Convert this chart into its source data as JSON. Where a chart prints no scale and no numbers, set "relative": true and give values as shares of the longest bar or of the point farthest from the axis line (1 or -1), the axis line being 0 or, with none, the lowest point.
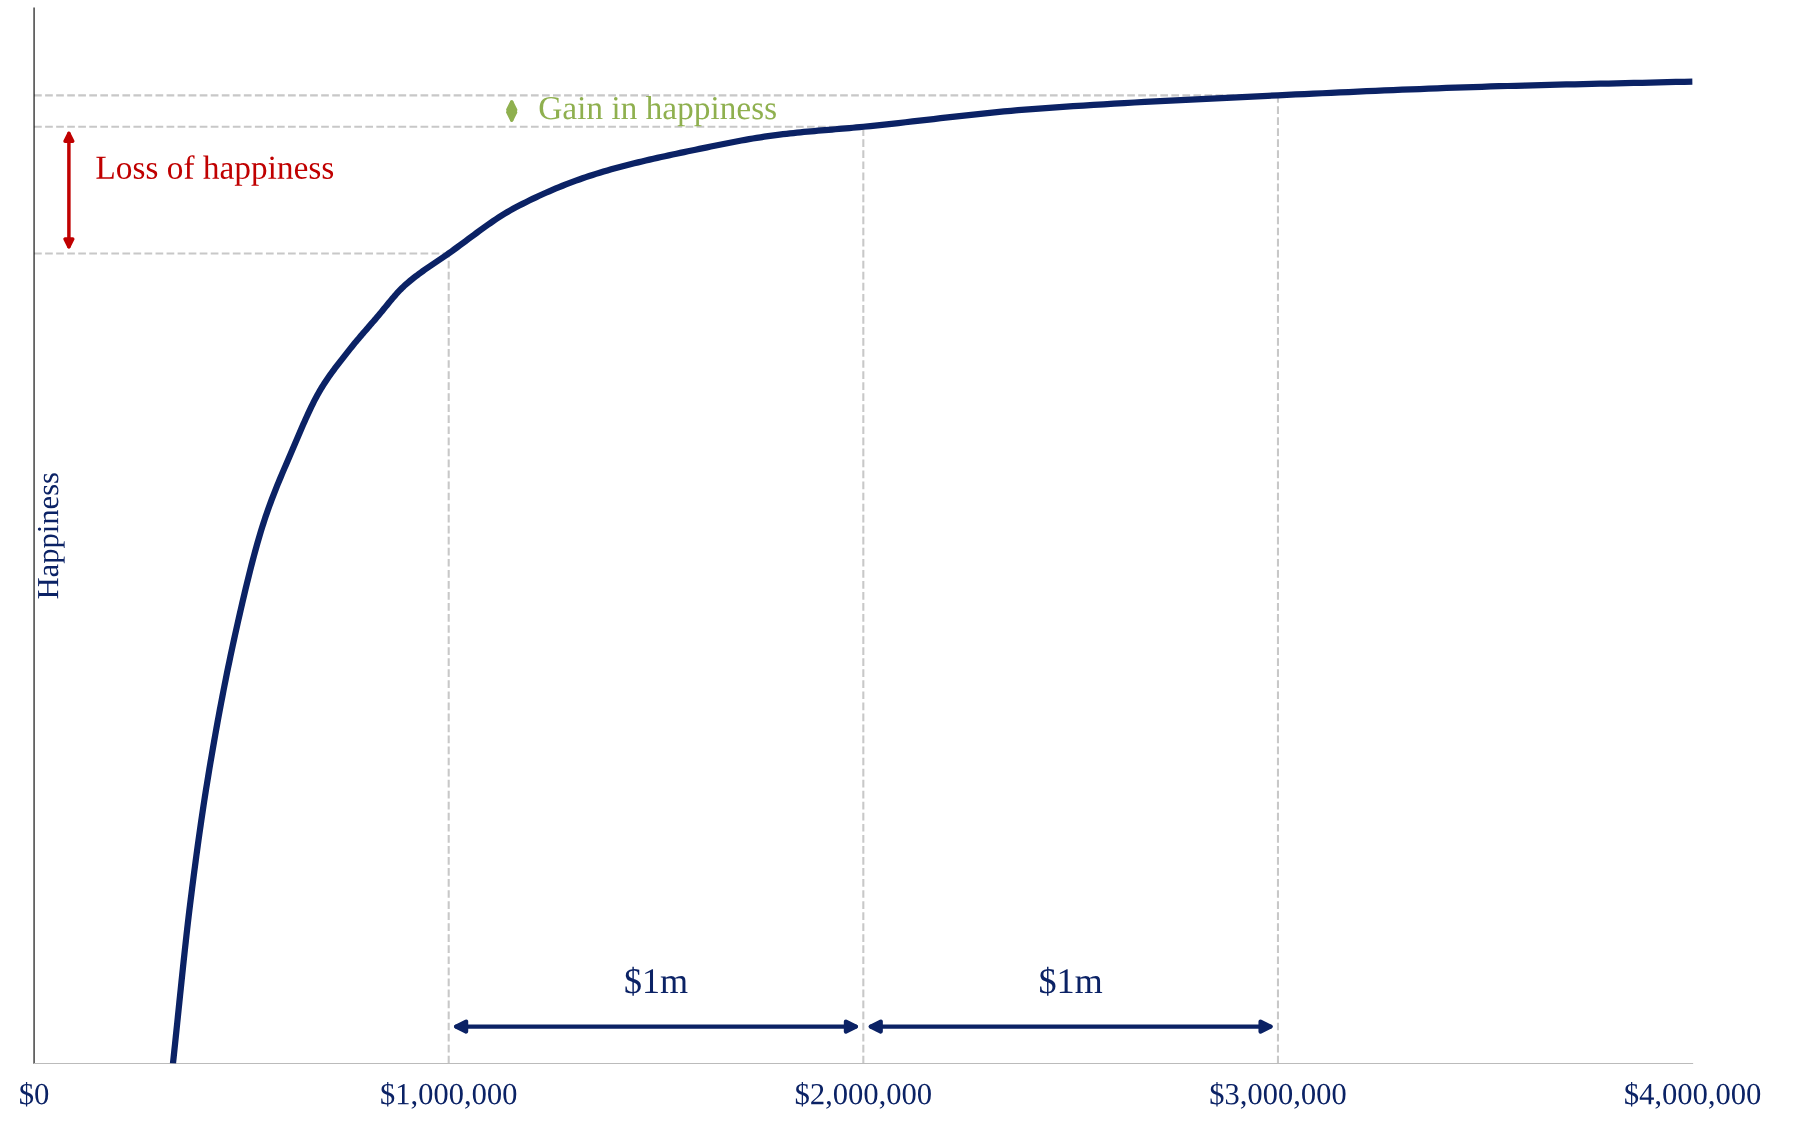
{
  "chart_data": {
    "type": "line",
    "relative": true,
    "ylabel": "Happiness",
    "x": [
      335000,
      376000,
      417000,
      485000,
      553000,
      621000,
      689000,
      757000,
      825000,
      893000,
      1000000,
      1162000,
      1355000,
      1577000,
      1798000,
      2000000,
      2407000,
      3000000,
      3513000,
      4000000
    ],
    "series": [
      {
        "color": "#0b2265",
        "values": [
          0,
          0.161,
          0.285,
          0.437,
          0.55,
          0.623,
          0.685,
          0.725,
          0.759,
          0.792,
          0.825,
          0.872,
          0.906,
          0.929,
          0.946,
          0.954,
          0.972,
          0.986,
          0.995,
          1.0
        ]
      }
    ],
    "xlim": [
      0,
      4000000
    ],
    "xticks": [
      {
        "value": 0,
        "label": "$0"
      },
      {
        "value": 1000000,
        "label": "$1,000,000"
      },
      {
        "value": 2000000,
        "label": "$2,000,000"
      },
      {
        "value": 3000000,
        "label": "$3,000,000"
      },
      {
        "value": 4000000,
        "label": "$4,000,000"
      }
    ],
    "ref_lines": [
      {
        "axis": "x",
        "value": 1000000,
        "color": "#c8c8c8",
        "line_style": "dashed"
      },
      {
        "axis": "x",
        "value": 2000000,
        "color": "#c8c8c8",
        "line_style": "dashed"
      },
      {
        "axis": "x",
        "value": 3000000,
        "color": "#c8c8c8",
        "line_style": "dashed"
      },
      {
        "axis": "y",
        "value": 0.825,
        "color": "#c8c8c8",
        "line_style": "dashed"
      },
      {
        "axis": "y",
        "value": 0.954,
        "color": "#c8c8c8",
        "line_style": "dashed"
      },
      {
        "axis": "y",
        "value": 0.986,
        "color": "#c8c8c8",
        "line_style": "dashed"
      }
    ],
    "annotations": [
      "Loss of happiness",
      "Gain in happiness",
      "$1m",
      "$1m"
    ],
    "grid": false,
    "legend": false,
    "marker": "none",
    "line_style": "solid"
  }
}
